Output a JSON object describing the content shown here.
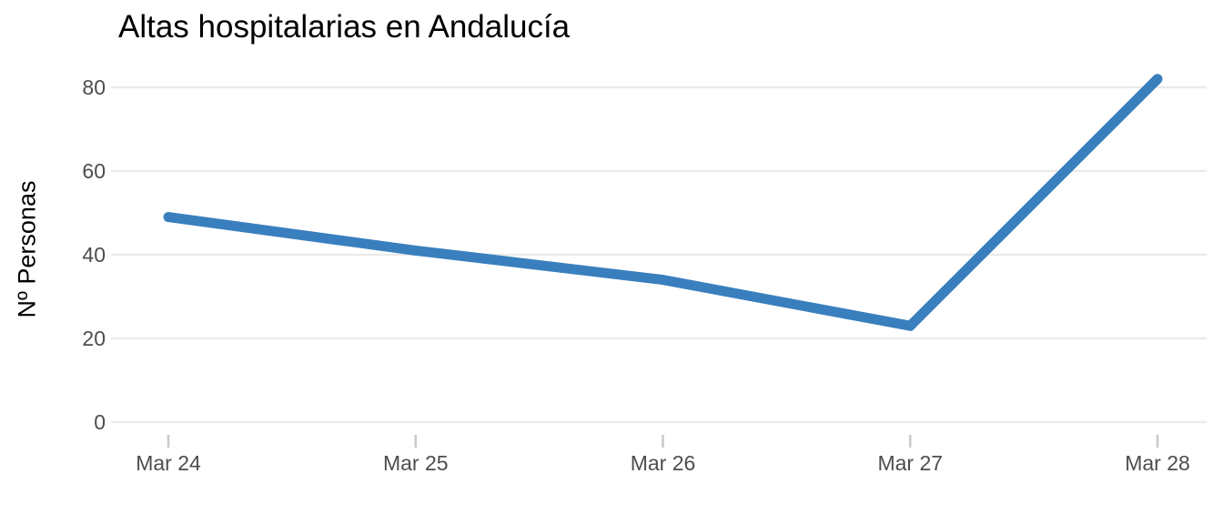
{
  "chart_data": {
    "type": "line",
    "title": "Altas hospitalarias en Andalucía",
    "xlabel": "",
    "ylabel": "Nº Personas",
    "categories": [
      "Mar 24",
      "Mar 25",
      "Mar 26",
      "Mar 27",
      "Mar 28"
    ],
    "series": [
      {
        "values": [
          49,
          41,
          34,
          23,
          82
        ]
      }
    ],
    "ylim": [
      0,
      80
    ],
    "yticks": [
      0,
      20,
      40,
      60,
      80
    ],
    "grid": true,
    "colors": {
      "line": "#3a7fbd",
      "grid": "#ebebeb",
      "tick_text": "#4d4d4d"
    }
  }
}
